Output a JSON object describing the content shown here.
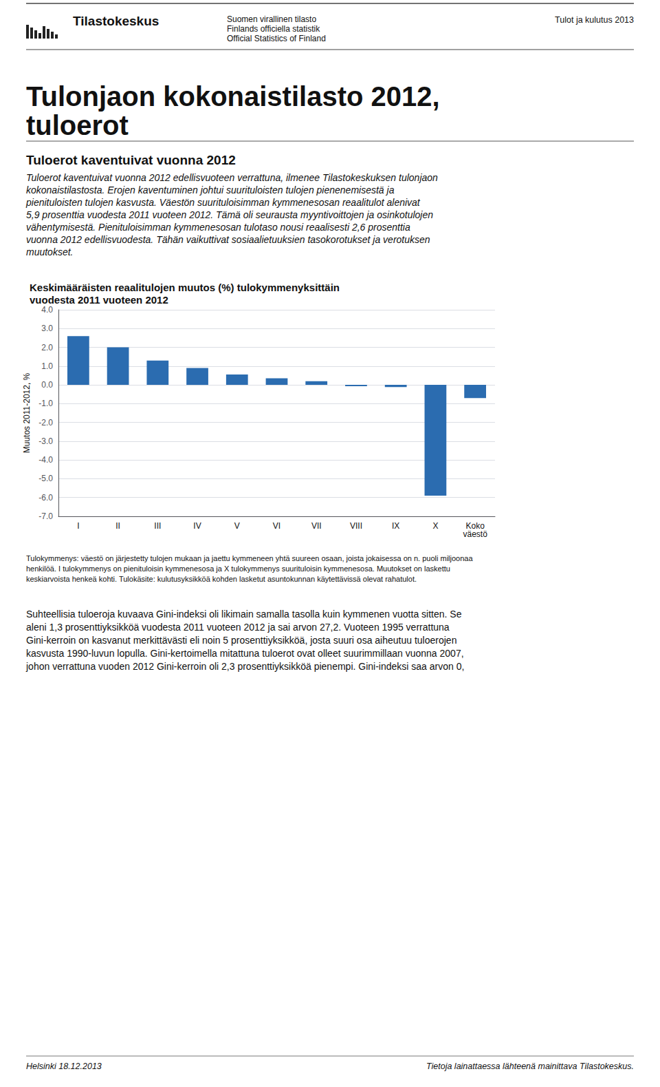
{
  "chart_data": {
    "type": "bar",
    "title": "Keskimääräisten reaalitulojen muutos (%) tulokymmenyksittäin\nvuodesta 2011 vuoteen 2012",
    "ylabel": "Muutos 2011-2012, %",
    "categories": [
      "I",
      "II",
      "III",
      "IV",
      "V",
      "VI",
      "VII",
      "VIII",
      "IX",
      "X",
      "Koko\nväestö"
    ],
    "values": [
      2.6,
      2.0,
      1.3,
      0.9,
      0.55,
      0.35,
      0.2,
      -0.07,
      -0.12,
      -5.9,
      -0.7
    ],
    "color": "#2b6cb0",
    "ylim": [
      -7.0,
      4.0
    ],
    "yticks": [
      {
        "value": -7,
        "label": "-7.0"
      },
      {
        "value": -6,
        "label": "-6.0"
      },
      {
        "value": -5,
        "label": "-5.0"
      },
      {
        "value": -4,
        "label": "-4.0"
      },
      {
        "value": -3,
        "label": "-3.0"
      },
      {
        "value": -2,
        "label": "-2.0"
      },
      {
        "value": -1,
        "label": "-1.0"
      },
      {
        "value": 0,
        "label": "0.0"
      },
      {
        "value": 1,
        "label": "1.0"
      },
      {
        "value": 2,
        "label": "2.0"
      },
      {
        "value": 3,
        "label": "3.0"
      },
      {
        "value": 4,
        "label": "4.0"
      }
    ],
    "grid": true,
    "annotations": [
      "Tilastokeskus",
      "Suomen virallinen tilasto",
      "Finlands officiella statistik",
      "Official Statistics of Finland",
      "Tulot ja kulutus 2013",
      "Tulonjaon kokonaistilasto 2012,",
      "tuloerot",
      "Tuloerot kaventuivat vuonna 2012",
      "Tuloerot kaventuivat vuonna 2012 edellisvuoteen verrattuna, ilmenee Tilastokeskuksen tulonjaon",
      "kokonaistilastosta. Erojen kaventuminen johtui suurituloisten tulojen pienenemisestä ja",
      "pienituloisten tulojen kasvusta. Väestön suurituloisimman kymmenesosan reaalitulot alenivat",
      "5,9 prosenttia vuodesta 2011 vuoteen 2012. Tämä oli seurausta myyntivoittojen ja osinkotulojen",
      "vähentymisestä. Pienituloisimman kymmenesosan tulotaso nousi reaalisesti 2,6 prosenttia",
      "vuonna 2012 edellisvuodesta. Tähän vaikuttivat sosiaalietuuksien tasokorotukset ja verotuksen",
      "muutokset.",
      "Tulokymmenys: väestö on järjestetty tulojen mukaan ja jaettu kymmeneen yhtä suureen osaan, joista jokaisessa on n. puoli miljoonaa",
      "henkilöä. I tulokymmenys on pienituloisin kymmenesosa ja X tulokymmenys suurituloisin kymmenesosa. Muutokset on laskettu",
      "keskiarvoista henkeä kohti. Tulokäsite: kulutusyksikköä kohden lasketut asuntokunnan käytettävissä olevat rahatulot.",
      "Suhteellisia tuloeroja kuvaava Gini-indeksi oli likimain samalla tasolla kuin kymmenen vuotta sitten. Se",
      "aleni 1,3 prosenttiyksikköä vuodesta 2011 vuoteen 2012 ja sai arvon 27,2. Vuoteen 1995 verrattuna",
      "Gini-kerroin on kasvanut merkittävästi eli noin 5 prosenttiyksikköä, josta suuri osa aiheutuu tuloerojen",
      "kasvusta 1990-luvun lopulla. Gini-kertoimella mitattuna tuloerot ovat olleet suurimmillaan vuonna 2007,",
      "johon verrattuna vuoden 2012 Gini-kerroin oli 2,3 prosenttiyksikköä pienempi. Gini-indeksi saa arvon 0,",
      "Helsinki 18.12.2013",
      "Tietoja lainattaessa lähteenä mainittava Tilastokeskus."
    ]
  }
}
